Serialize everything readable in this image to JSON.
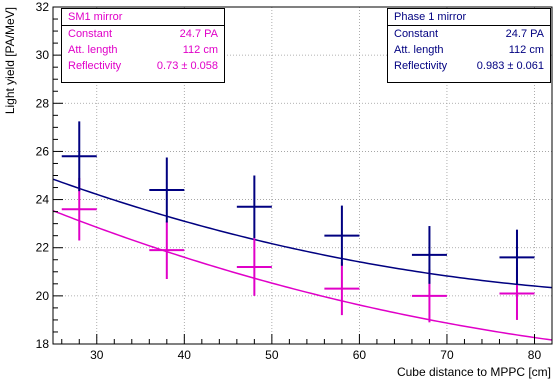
{
  "chart_data": {
    "type": "scatter",
    "xlabel": "Cube distance to MPPC [cm]",
    "ylabel": "Light yield [PA/MeV]",
    "xlim": [
      25,
      82
    ],
    "ylim": [
      18,
      32
    ],
    "x_ticks": [
      "30",
      "40",
      "50",
      "60",
      "70",
      "80"
    ],
    "y_ticks": [
      "18",
      "20",
      "22",
      "24",
      "26",
      "28",
      "30",
      "32"
    ],
    "grid": true,
    "series": [
      {
        "name": "SM1 mirror",
        "color": "#e000c8",
        "x": [
          28,
          38,
          48,
          58,
          68,
          78
        ],
        "y": [
          23.6,
          21.9,
          21.2,
          20.3,
          20.0,
          20.1
        ],
        "yerr": [
          1.3,
          1.2,
          1.2,
          1.1,
          1.1,
          1.1
        ],
        "xerr": 2,
        "fit": {
          "constant": 24.7,
          "att_length": 112,
          "reflectivity": 0.73
        }
      },
      {
        "name": "Phase 1 mirror",
        "color": "#000080",
        "x": [
          28,
          38,
          48,
          58,
          68,
          78
        ],
        "y": [
          25.8,
          24.4,
          23.7,
          22.5,
          21.7,
          21.6
        ],
        "yerr": [
          1.45,
          1.35,
          1.3,
          1.25,
          1.2,
          1.15
        ],
        "xerr": 2,
        "fit": {
          "constant": 24.7,
          "att_length": 112,
          "reflectivity": 0.983
        }
      }
    ],
    "legends": [
      {
        "title": "SM1 mirror",
        "rows": [
          {
            "label": "Constant",
            "value": "24.7 PA"
          },
          {
            "label": "Att. length",
            "value": "112 cm"
          },
          {
            "label": "Reflectivity",
            "value": "0.73 ± 0.058"
          }
        ]
      },
      {
        "title": "Phase 1 mirror",
        "rows": [
          {
            "label": "Constant",
            "value": "24.7 PA"
          },
          {
            "label": "Att. length",
            "value": "112 cm"
          },
          {
            "label": "Reflectivity",
            "value": "0.983 ± 0.061"
          }
        ]
      }
    ]
  }
}
